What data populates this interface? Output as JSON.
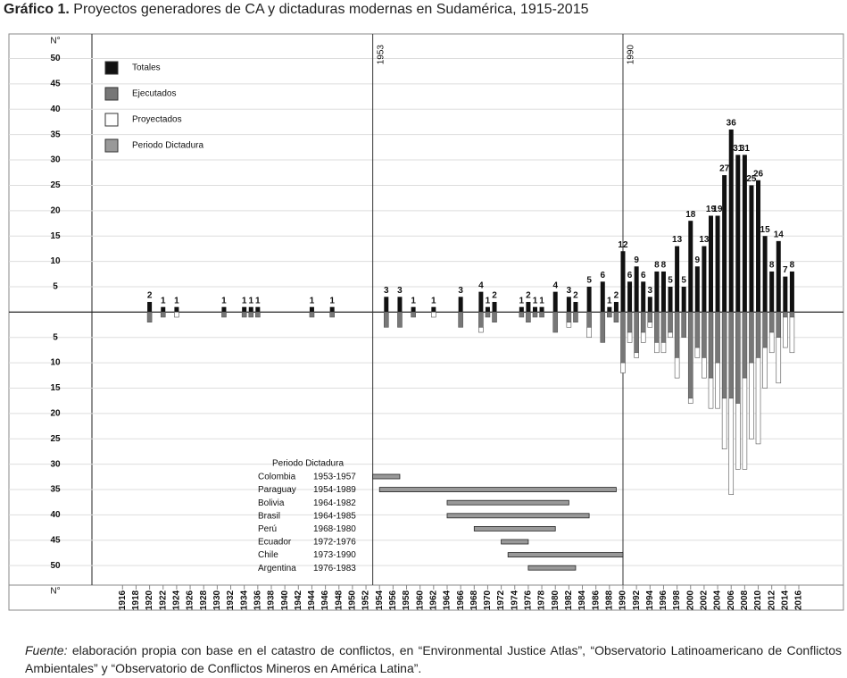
{
  "chart_data": {
    "type": "bar",
    "figure_label": "Gráfico 1.",
    "title": "Proyectos generadores de CA y dictaduras modernas en Sudamérica, 1915-2015",
    "y_label": "N°",
    "x": [
      1920,
      1922,
      1924,
      1931,
      1934,
      1935,
      1936,
      1944,
      1947,
      1955,
      1957,
      1959,
      1962,
      1966,
      1969,
      1970,
      1971,
      1975,
      1976,
      1977,
      1978,
      1980,
      1982,
      1983,
      1985,
      1987,
      1988,
      1989,
      1990,
      1991,
      1992,
      1993,
      1994,
      1995,
      1996,
      1997,
      1998,
      1999,
      2000,
      2001,
      2002,
      2003,
      2004,
      2005,
      2006,
      2007,
      2008,
      2009,
      2010,
      2011,
      2012,
      2013,
      2014,
      2015
    ],
    "series": [
      {
        "name": "Totales",
        "color": "#111111",
        "side": "above",
        "values": [
          2,
          1,
          1,
          1,
          1,
          1,
          1,
          1,
          1,
          3,
          3,
          1,
          1,
          3,
          4,
          1,
          2,
          1,
          2,
          1,
          1,
          4,
          3,
          2,
          5,
          6,
          1,
          2,
          12,
          6,
          9,
          6,
          3,
          8,
          8,
          5,
          13,
          5,
          18,
          9,
          13,
          19,
          19,
          27,
          36,
          31,
          31,
          25,
          26,
          15,
          8,
          14,
          7,
          8
        ]
      },
      {
        "name": "Ejecutados",
        "color": "#777777",
        "side": "below",
        "values": [
          2,
          1,
          0,
          1,
          1,
          1,
          1,
          1,
          1,
          3,
          3,
          1,
          0,
          3,
          3,
          1,
          2,
          1,
          2,
          1,
          1,
          4,
          2,
          2,
          3,
          6,
          1,
          2,
          10,
          4,
          8,
          4,
          2,
          6,
          6,
          4,
          9,
          5,
          17,
          7,
          9,
          13,
          10,
          17,
          17,
          18,
          13,
          10,
          9,
          7,
          4,
          5,
          1,
          1
        ]
      },
      {
        "name": "Proyectados",
        "color": "#ffffff",
        "side": "below",
        "values": [
          0,
          0,
          1,
          0,
          0,
          0,
          0,
          0,
          0,
          0,
          0,
          0,
          1,
          0,
          1,
          0,
          0,
          0,
          0,
          0,
          0,
          0,
          1,
          0,
          2,
          0,
          0,
          0,
          2,
          2,
          1,
          2,
          1,
          2,
          2,
          1,
          4,
          0,
          1,
          2,
          4,
          6,
          9,
          10,
          19,
          13,
          18,
          15,
          17,
          8,
          4,
          9,
          6,
          7
        ]
      }
    ],
    "dictatorship_legend": {
      "name": "Periodo Dictadura",
      "color": "#999999"
    },
    "xlim": [
      1899.2,
      2022.6
    ],
    "xticks": [
      1916,
      1918,
      1920,
      1922,
      1924,
      1926,
      1928,
      1930,
      1932,
      1934,
      1936,
      1938,
      1940,
      1942,
      1944,
      1946,
      1948,
      1950,
      1952,
      1954,
      1956,
      1958,
      1960,
      1962,
      1964,
      1966,
      1968,
      1970,
      1972,
      1974,
      1976,
      1978,
      1980,
      1982,
      1984,
      1986,
      1988,
      1990,
      1992,
      1994,
      1996,
      1998,
      2000,
      2002,
      2004,
      2006,
      2008,
      2010,
      2012,
      2014,
      2016
    ],
    "ylim": [
      -53.5,
      54.5
    ],
    "yticks": [
      50,
      45,
      40,
      35,
      30,
      25,
      20,
      15,
      10,
      5,
      {
        "value": -5,
        "label": "5"
      },
      {
        "value": -10,
        "label": "10"
      },
      {
        "value": -15,
        "label": "15"
      },
      {
        "value": -20,
        "label": "20"
      },
      {
        "value": -25,
        "label": "25"
      },
      {
        "value": -30,
        "label": "30"
      },
      {
        "value": -35,
        "label": "35"
      },
      {
        "value": -40,
        "label": "40"
      },
      {
        "value": -45,
        "label": "45"
      },
      {
        "value": -50,
        "label": "50"
      }
    ],
    "grid": true,
    "reference_lines": [
      {
        "x": 1953
      },
      {
        "x": 1990
      }
    ],
    "dictatorships": {
      "title": "Periodo Dictadura",
      "color": "#999999",
      "rows": [
        {
          "country": "Colombia",
          "label": "1953-1957",
          "start": 1953,
          "end": 1957
        },
        {
          "country": "Paraguay",
          "label": "1954-1989",
          "start": 1954,
          "end": 1989
        },
        {
          "country": "Bolivia",
          "label": "1964-1982",
          "start": 1964,
          "end": 1982
        },
        {
          "country": "Brasil",
          "label": "1964-1985",
          "start": 1964,
          "end": 1985
        },
        {
          "country": "Perú",
          "label": "1968-1980",
          "start": 1968,
          "end": 1980
        },
        {
          "country": "Ecuador",
          "label": "1972-1976",
          "start": 1972,
          "end": 1976
        },
        {
          "country": "Chile",
          "label": "1973-1990",
          "start": 1973,
          "end": 1990
        },
        {
          "country": "Argentina",
          "label": "1976-1983",
          "start": 1976,
          "end": 1983
        }
      ]
    },
    "source_label": "Fuente:",
    "source": "elaboración propia con base en el catastro de conflictos, en “Environmental Justice Atlas”, “Observatorio Latinoamericano de Conflictos Ambientales” y “Observatorio de Conflictos Mineros en América Latina”."
  }
}
